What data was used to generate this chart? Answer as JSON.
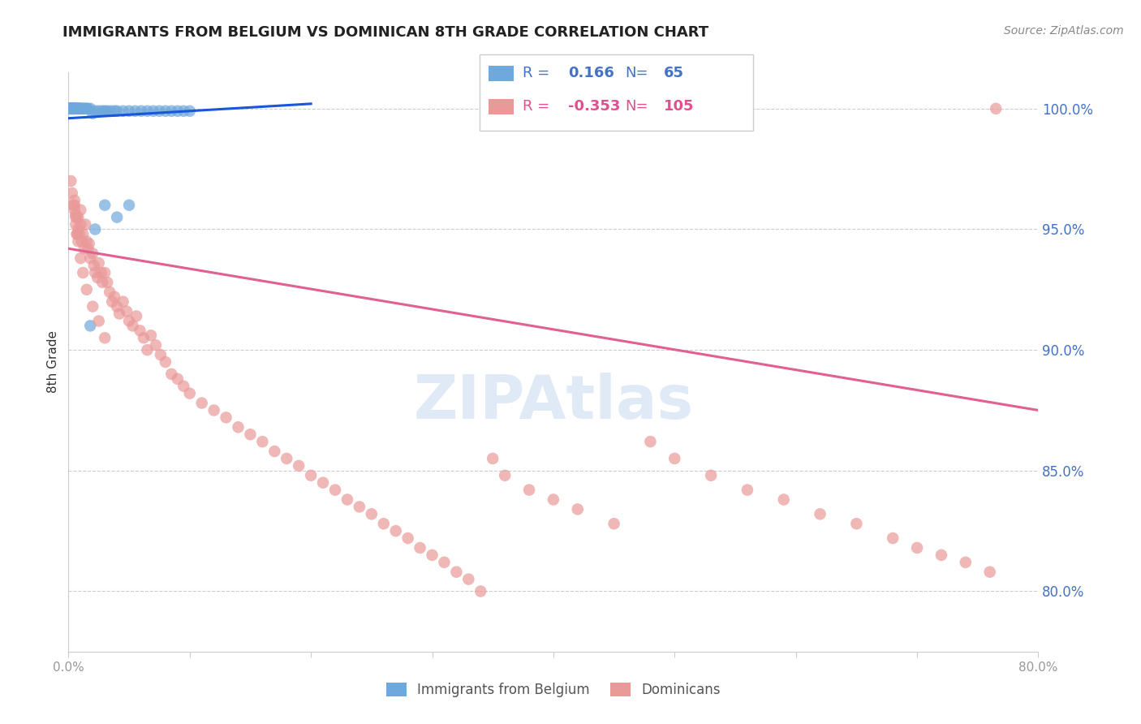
{
  "title": "IMMIGRANTS FROM BELGIUM VS DOMINICAN 8TH GRADE CORRELATION CHART",
  "source": "Source: ZipAtlas.com",
  "ylabel": "8th Grade",
  "ytick_labels": [
    "100.0%",
    "95.0%",
    "90.0%",
    "85.0%",
    "80.0%"
  ],
  "ytick_values": [
    1.0,
    0.95,
    0.9,
    0.85,
    0.8
  ],
  "xlim": [
    0.0,
    0.8
  ],
  "ylim": [
    0.775,
    1.015
  ],
  "legend_belgium_r": "0.166",
  "legend_belgium_n": "65",
  "legend_dominican_r": "-0.353",
  "legend_dominican_n": "105",
  "belgium_color": "#6fa8dc",
  "dominican_color": "#ea9999",
  "belgium_line_color": "#1a56db",
  "dominican_line_color": "#e06090",
  "watermark_color": "#c8d8ef",
  "background_color": "#ffffff",
  "grid_color": "#cccccc",
  "title_color": "#222222",
  "axis_label_color": "#333333",
  "ytick_color": "#4472c4",
  "legend_blue_color": "#4472c4",
  "legend_pink_color": "#e05090",
  "belgium_x": [
    0.0,
    0.001,
    0.001,
    0.001,
    0.002,
    0.002,
    0.002,
    0.002,
    0.003,
    0.003,
    0.003,
    0.003,
    0.004,
    0.004,
    0.004,
    0.004,
    0.005,
    0.005,
    0.005,
    0.005,
    0.006,
    0.006,
    0.006,
    0.007,
    0.007,
    0.007,
    0.008,
    0.008,
    0.009,
    0.009,
    0.01,
    0.01,
    0.011,
    0.012,
    0.013,
    0.014,
    0.015,
    0.016,
    0.018,
    0.02,
    0.022,
    0.025,
    0.028,
    0.03,
    0.032,
    0.035,
    0.038,
    0.04,
    0.045,
    0.05,
    0.055,
    0.06,
    0.065,
    0.07,
    0.075,
    0.08,
    0.085,
    0.09,
    0.095,
    0.1,
    0.018,
    0.022,
    0.03,
    0.04,
    0.05
  ],
  "belgium_y": [
    1.0,
    1.0,
    1.0,
    1.0,
    1.0,
    1.0,
    1.0,
    1.0,
    1.0,
    1.0,
    1.0,
    1.0,
    1.0,
    1.0,
    1.0,
    1.0,
    1.0,
    1.0,
    1.0,
    1.0,
    1.0,
    1.0,
    1.0,
    1.0,
    1.0,
    1.0,
    1.0,
    1.0,
    1.0,
    1.0,
    1.0,
    1.0,
    1.0,
    1.0,
    1.0,
    1.0,
    1.0,
    1.0,
    1.0,
    0.998,
    0.999,
    0.999,
    0.999,
    0.999,
    0.999,
    0.999,
    0.999,
    0.999,
    0.999,
    0.999,
    0.999,
    0.999,
    0.999,
    0.999,
    0.999,
    0.999,
    0.999,
    0.999,
    0.999,
    0.999,
    0.91,
    0.95,
    0.96,
    0.955,
    0.96
  ],
  "dominican_x": [
    0.002,
    0.003,
    0.004,
    0.005,
    0.005,
    0.006,
    0.006,
    0.007,
    0.007,
    0.008,
    0.008,
    0.009,
    0.01,
    0.01,
    0.011,
    0.012,
    0.013,
    0.014,
    0.015,
    0.016,
    0.017,
    0.018,
    0.02,
    0.021,
    0.022,
    0.024,
    0.025,
    0.027,
    0.028,
    0.03,
    0.032,
    0.034,
    0.036,
    0.038,
    0.04,
    0.042,
    0.045,
    0.048,
    0.05,
    0.053,
    0.056,
    0.059,
    0.062,
    0.065,
    0.068,
    0.072,
    0.076,
    0.08,
    0.085,
    0.09,
    0.095,
    0.1,
    0.11,
    0.12,
    0.13,
    0.14,
    0.15,
    0.16,
    0.17,
    0.18,
    0.19,
    0.2,
    0.21,
    0.22,
    0.23,
    0.24,
    0.25,
    0.26,
    0.27,
    0.28,
    0.29,
    0.3,
    0.31,
    0.32,
    0.33,
    0.34,
    0.35,
    0.36,
    0.38,
    0.4,
    0.42,
    0.45,
    0.48,
    0.5,
    0.53,
    0.56,
    0.59,
    0.62,
    0.65,
    0.68,
    0.7,
    0.72,
    0.74,
    0.76,
    0.005,
    0.006,
    0.007,
    0.008,
    0.01,
    0.012,
    0.015,
    0.02,
    0.025,
    0.03,
    0.765
  ],
  "dominican_y": [
    0.97,
    0.965,
    0.96,
    0.962,
    0.958,
    0.956,
    0.952,
    0.955,
    0.948,
    0.955,
    0.95,
    0.948,
    0.952,
    0.958,
    0.945,
    0.948,
    0.942,
    0.952,
    0.945,
    0.942,
    0.944,
    0.938,
    0.94,
    0.935,
    0.932,
    0.93,
    0.936,
    0.932,
    0.928,
    0.932,
    0.928,
    0.924,
    0.92,
    0.922,
    0.918,
    0.915,
    0.92,
    0.916,
    0.912,
    0.91,
    0.914,
    0.908,
    0.905,
    0.9,
    0.906,
    0.902,
    0.898,
    0.895,
    0.89,
    0.888,
    0.885,
    0.882,
    0.878,
    0.875,
    0.872,
    0.868,
    0.865,
    0.862,
    0.858,
    0.855,
    0.852,
    0.848,
    0.845,
    0.842,
    0.838,
    0.835,
    0.832,
    0.828,
    0.825,
    0.822,
    0.818,
    0.815,
    0.812,
    0.808,
    0.805,
    0.8,
    0.855,
    0.848,
    0.842,
    0.838,
    0.834,
    0.828,
    0.862,
    0.855,
    0.848,
    0.842,
    0.838,
    0.832,
    0.828,
    0.822,
    0.818,
    0.815,
    0.812,
    0.808,
    0.96,
    0.955,
    0.948,
    0.945,
    0.938,
    0.932,
    0.925,
    0.918,
    0.912,
    0.905,
    1.0
  ],
  "bel_line_x": [
    0.0,
    0.2
  ],
  "bel_line_y": [
    0.996,
    1.002
  ],
  "dom_line_x": [
    0.0,
    0.8
  ],
  "dom_line_y": [
    0.942,
    0.875
  ]
}
